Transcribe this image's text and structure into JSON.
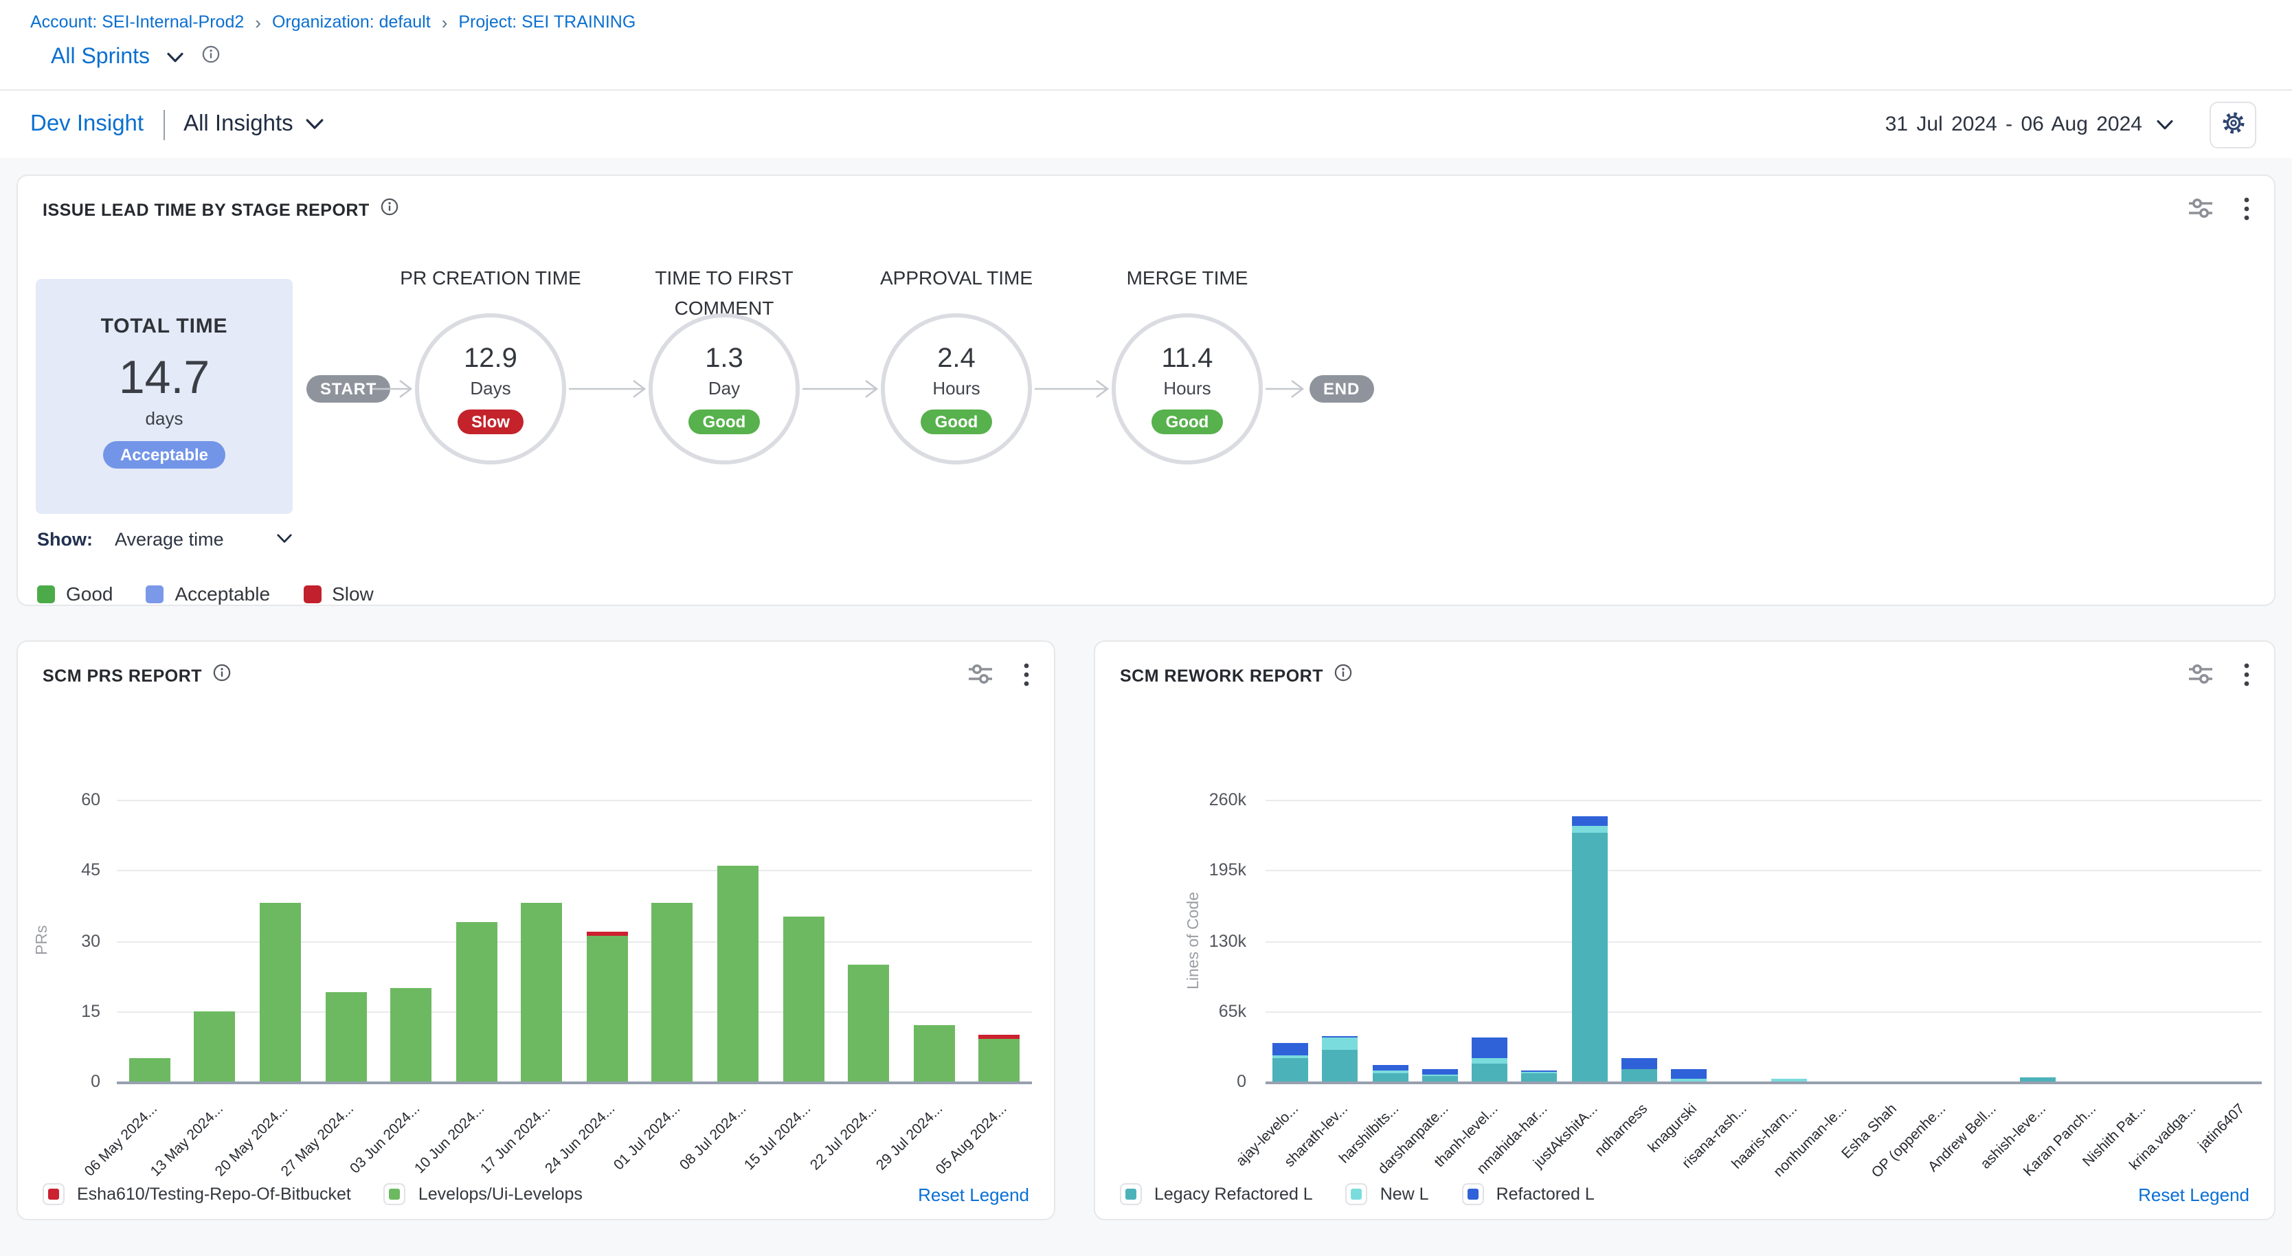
{
  "header": {
    "breadcrumb": {
      "items": [
        "Account: SEI-Internal-Prod2",
        "Organization: default",
        "Project: SEI TRAINING"
      ],
      "separator": "›"
    },
    "sprint_selector": {
      "label": "All Sprints"
    },
    "nav": {
      "primary": "Dev Insight",
      "secondary": "All Insights"
    },
    "date_range": "31 Jul 2024 - 06 Aug 2024"
  },
  "icons": {
    "breadcrumb_separator": "chevron-right",
    "sprint_dropdown": "chevron-down",
    "sprint_info": "info-circle",
    "insight_dropdown": "chevron-down",
    "date_dropdown": "chevron-down",
    "settings": "gear",
    "card_info": "info-circle",
    "card_filter": "sliders",
    "card_menu": "kebab-vertical"
  },
  "colors": {
    "link_blue": "#0b6fd0",
    "good": "#57b14c",
    "acceptable": "#7295e8",
    "slow": "#c4232c",
    "prs_green": "#6db961",
    "prs_red": "#cb2130",
    "legacy_teal": "#4cb2ba",
    "new_teal": "#7bdcdd",
    "refactored_blue": "#2f62d9"
  },
  "lead_time_card": {
    "title": "ISSUE LEAD TIME BY STAGE REPORT",
    "total": {
      "label": "TOTAL TIME",
      "value": "14.7",
      "unit": "days",
      "rating": "Acceptable",
      "rating_color": "#7295e8"
    },
    "show": {
      "label": "Show:",
      "value": "Average time"
    },
    "flow": {
      "start": "START",
      "end": "END"
    },
    "stages": [
      {
        "name": "PR CREATION TIME",
        "value": "12.9",
        "unit": "Days",
        "rating": "Slow",
        "rating_color": "#c4232c"
      },
      {
        "name": "TIME TO FIRST COMMENT",
        "value": "1.3",
        "unit": "Day",
        "rating": "Good",
        "rating_color": "#57b14c"
      },
      {
        "name": "APPROVAL TIME",
        "value": "2.4",
        "unit": "Hours",
        "rating": "Good",
        "rating_color": "#57b14c"
      },
      {
        "name": "MERGE TIME",
        "value": "11.4",
        "unit": "Hours",
        "rating": "Good",
        "rating_color": "#57b14c"
      }
    ],
    "legend": [
      {
        "label": "Good",
        "color": "#4cab49"
      },
      {
        "label": "Acceptable",
        "color": "#7b99e9"
      },
      {
        "label": "Slow",
        "color": "#c1212c"
      }
    ]
  },
  "chart_data": [
    {
      "type": "bar",
      "stacked": true,
      "title": "SCM PRS REPORT",
      "xlabel": "",
      "ylabel": "PRs",
      "ylim": [
        0,
        60
      ],
      "yticks": [
        {
          "v": 0,
          "label": "0"
        },
        {
          "v": 15,
          "label": "15"
        },
        {
          "v": 30,
          "label": "30"
        },
        {
          "v": 45,
          "label": "45"
        },
        {
          "v": 60,
          "label": "60"
        }
      ],
      "grid": true,
      "legend_position": "bottom",
      "categories": [
        "06 May 2024...",
        "13 May 2024...",
        "20 May 2024...",
        "27 May 2024...",
        "03 Jun 2024...",
        "10 Jun 2024...",
        "17 Jun 2024...",
        "24 Jun 2024...",
        "01 Jul 2024...",
        "08 Jul 2024...",
        "15 Jul 2024...",
        "22 Jul 2024...",
        "29 Jul 2024...",
        "05 Aug 2024..."
      ],
      "series": [
        {
          "name": "Levelops/Ui-Levelops",
          "color": "#6db961",
          "values": [
            5,
            15,
            38,
            19,
            20,
            34,
            38,
            31,
            38,
            46,
            35,
            25,
            12,
            9
          ]
        },
        {
          "name": "Esha610/Testing-Repo-Of-Bitbucket",
          "color": "#cb2130",
          "values": [
            0,
            0,
            0,
            0,
            0,
            0,
            0,
            1,
            0,
            0,
            0,
            0,
            0,
            1
          ]
        }
      ],
      "legend": [
        {
          "label": "Esha610/Testing-Repo-Of-Bitbucket",
          "color": "#cb2130"
        },
        {
          "label": "Levelops/Ui-Levelops",
          "color": "#6db961"
        }
      ],
      "reset_label": "Reset Legend"
    },
    {
      "type": "bar",
      "stacked": true,
      "title": "SCM REWORK REPORT",
      "xlabel": "",
      "ylabel": "Lines of Code",
      "ylim": [
        0,
        260000
      ],
      "yticks": [
        {
          "v": 0,
          "label": "0"
        },
        {
          "v": 65000,
          "label": "65k"
        },
        {
          "v": 130000,
          "label": "130k"
        },
        {
          "v": 195000,
          "label": "195k"
        },
        {
          "v": 260000,
          "label": "260k"
        }
      ],
      "grid": true,
      "legend_position": "bottom",
      "categories": [
        "ajay-levelo...",
        "sharath-lev...",
        "harshilbits...",
        "darshanpate...",
        "thanh-level...",
        "nmahida-har...",
        "justAkshitA...",
        "ndharness",
        "knagurski",
        "risana-rash...",
        "haaris-harn...",
        "nonhuman-le...",
        "Esha Shah",
        "OP (oppenhe...",
        "Andrew Bell...",
        "ashish-leve...",
        "Karan Panch...",
        "Nishith Pat...",
        "krina.vadga...",
        "jatin6407"
      ],
      "series": [
        {
          "name": "Legacy Refactored L",
          "color": "#4cb2ba",
          "values": [
            21000,
            29000,
            8000,
            5000,
            16000,
            8000,
            230000,
            11000,
            0,
            0,
            0,
            0,
            0,
            0,
            0,
            4000,
            0,
            0,
            0,
            0
          ]
        },
        {
          "name": "New L",
          "color": "#7bdcdd",
          "values": [
            3000,
            12000,
            2000,
            1000,
            5000,
            1000,
            6000,
            1000,
            2000,
            0,
            2000,
            0,
            0,
            0,
            0,
            0,
            0,
            0,
            0,
            0
          ]
        },
        {
          "name": "Refactored L",
          "color": "#2f62d9",
          "values": [
            12000,
            1500,
            5000,
            6000,
            19000,
            1000,
            9000,
            9000,
            10000,
            0,
            0,
            0,
            0,
            0,
            0,
            0,
            0,
            0,
            0,
            0
          ]
        }
      ],
      "legend": [
        {
          "label": "Legacy Refactored L",
          "color": "#4cb2ba"
        },
        {
          "label": "New L",
          "color": "#7bdcdd"
        },
        {
          "label": "Refactored L",
          "color": "#2f62d9"
        }
      ],
      "reset_label": "Reset Legend"
    }
  ]
}
